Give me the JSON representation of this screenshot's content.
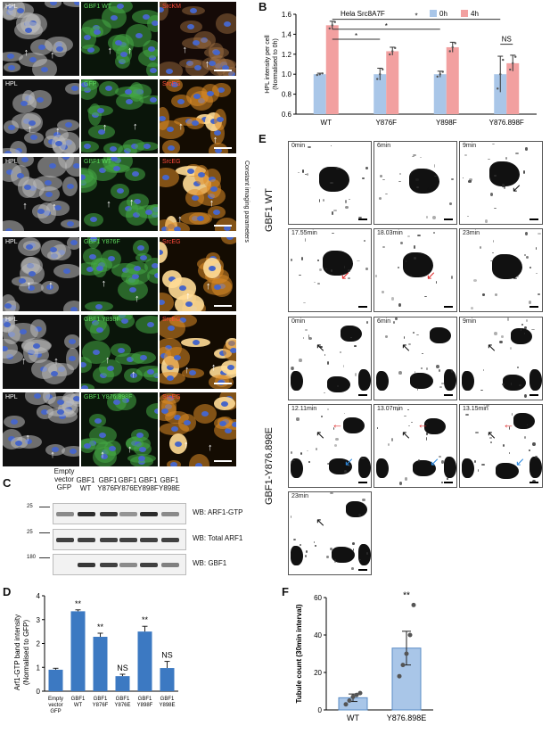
{
  "panels": {
    "A": {
      "label": "A",
      "rows": [
        {
          "c1": "HPL",
          "c2": "GBF1 WT",
          "c3": "SrcKM",
          "c2color": "green",
          "c3color": "red"
        },
        {
          "c1": "HPL",
          "c2": "GFP",
          "c3": "SrcEG",
          "c2color": "green",
          "c3color": "gold"
        },
        {
          "c1": "HPL",
          "c2": "GBF1 WT",
          "c3": "SrcEG",
          "c2color": "green",
          "c3color": "gold"
        },
        {
          "c1": "HPL",
          "c2": "GBF1 Y876F",
          "c3": "SrcEG",
          "c2color": "green",
          "c3color": "gold"
        },
        {
          "c1": "HPL",
          "c2": "GBF1 Y898F",
          "c3": "SrcEG",
          "c2color": "green",
          "c3color": "gold"
        },
        {
          "c1": "HPL",
          "c2": "GBF1 Y876.898F",
          "c3": "SrcEG",
          "c2color": "green",
          "c3color": "gold"
        }
      ],
      "side_note": "Constant imaging parameters"
    },
    "B": {
      "label": "B"
    },
    "C": {
      "label": "C",
      "lanes": [
        "Empty vector GFP",
        "GBF1 WT",
        "GBF1 Y876F",
        "GBF1 Y876E",
        "GBF1 Y898F",
        "GBF1 Y898E"
      ],
      "lane_lines": [
        [
          "Empty",
          "vector",
          "GFP"
        ],
        [
          "GBF1",
          "WT"
        ],
        [
          "GBF1",
          "Y876F"
        ],
        [
          "GBF1",
          "Y876E"
        ],
        [
          "GBF1",
          "Y898F"
        ],
        [
          "GBF1",
          "Y898E"
        ]
      ],
      "blots": [
        {
          "label": "WB: ARF1-GTP",
          "marker": "25"
        },
        {
          "label": "WB: Total ARF1",
          "marker": "25"
        },
        {
          "label": "WB: GBF1",
          "marker": "180"
        }
      ]
    },
    "D": {
      "label": "D"
    },
    "E": {
      "label": "E",
      "group1": {
        "name": "GBF1 WT",
        "times": [
          "0min",
          "6min",
          "9min",
          "17.55min",
          "18.03min",
          "23min"
        ]
      },
      "group2": {
        "name": "GBF1-Y876.898E",
        "times": [
          "0min",
          "6min",
          "9min",
          "12.11min",
          "13.07min",
          "13.15min",
          "23min"
        ]
      }
    },
    "F": {
      "label": "F"
    }
  },
  "chart_data": [
    {
      "id": "B",
      "type": "bar",
      "title": "Hela Src8A7F",
      "categories": [
        "WT",
        "Y876F",
        "Y898F",
        "Y876.898F"
      ],
      "series": [
        {
          "name": "0h",
          "color": "#a9c6e8",
          "values": [
            1.0,
            1.0,
            1.0,
            1.0
          ],
          "errors": [
            0.01,
            0.06,
            0.03,
            0.18
          ]
        },
        {
          "name": "4h",
          "color": "#f2a0a0",
          "values": [
            1.49,
            1.23,
            1.27,
            1.11
          ],
          "errors": [
            0.04,
            0.04,
            0.05,
            0.08
          ]
        }
      ],
      "ylabel": "HPL intensity per cell (Normalised to 0h)",
      "ylim": [
        0.6,
        1.6
      ],
      "yticks": [
        0.6,
        0.8,
        1.0,
        1.2,
        1.4,
        1.6
      ],
      "ytick_labels": [
        "0.6",
        "0.8",
        "1.0",
        "1.2",
        "1.4",
        "1.6"
      ],
      "legend_position": "top-right",
      "annotations": [
        "*",
        "*",
        "*",
        "NS"
      ]
    },
    {
      "id": "D",
      "type": "bar",
      "categories": [
        "Empty vector GFP",
        "GBF1 WT",
        "GBF1 Y876F",
        "GBF1 Y876E",
        "GBF1 Y898F",
        "GBF1 Y898E"
      ],
      "category_lines": [
        [
          "Empty",
          "vector",
          "GFP"
        ],
        [
          "GBF1",
          "WT"
        ],
        [
          "GBF1",
          "Y876F"
        ],
        [
          "GBF1",
          "Y876E"
        ],
        [
          "GBF1",
          "Y898F"
        ],
        [
          "GBF1",
          "Y898E"
        ]
      ],
      "values": [
        0.9,
        3.35,
        2.28,
        0.63,
        2.5,
        0.97
      ],
      "errors": [
        0.06,
        0.06,
        0.15,
        0.08,
        0.22,
        0.28
      ],
      "annotations": [
        "",
        "**",
        "**",
        "NS",
        "**",
        "NS"
      ],
      "color": "#3c79c2",
      "ylabel": "Arf1-GTP band intensity (Normalised to GFP)",
      "ylim": [
        0,
        4
      ],
      "yticks": [
        0,
        1,
        2,
        3,
        4
      ],
      "ytick_labels": [
        "0",
        "1",
        "2",
        "3",
        "4"
      ]
    },
    {
      "id": "F",
      "type": "bar",
      "categories": [
        "WT",
        "Y876.898E"
      ],
      "values": [
        6.5,
        33
      ],
      "errors": [
        2,
        9
      ],
      "points": [
        [
          3,
          5,
          7,
          8,
          9
        ],
        [
          18,
          24,
          30,
          40,
          56
        ]
      ],
      "annotations": [
        "",
        "**"
      ],
      "color": "#a9c6e8",
      "ylabel": "Tubule count (30min interval)",
      "ylim": [
        0,
        60
      ],
      "yticks": [
        0,
        20,
        40,
        60
      ],
      "ytick_labels": [
        "0",
        "20",
        "40",
        "60"
      ]
    }
  ]
}
